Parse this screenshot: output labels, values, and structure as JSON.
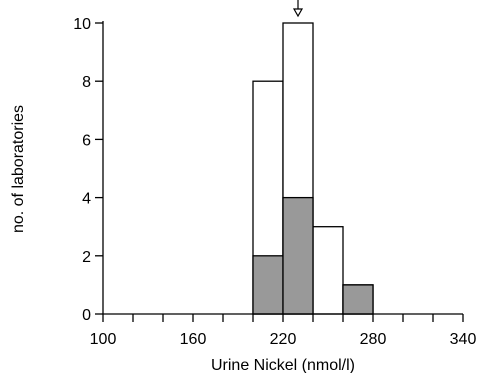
{
  "chart_data": {
    "type": "bar",
    "title": "",
    "xlabel": "Urine Nickel (nmol/l)",
    "ylabel": "no. of laboratories",
    "xlim": [
      100,
      340
    ],
    "ylim": [
      0,
      10
    ],
    "x_ticks": [
      100,
      160,
      220,
      280,
      340
    ],
    "x_minor_step": 20,
    "y_ticks": [
      0,
      2,
      4,
      6,
      8,
      10
    ],
    "bin_width": 20,
    "grid": false,
    "legend": "none",
    "marker": {
      "type": "arrow",
      "x": 230
    },
    "series": [
      {
        "color": "#ffffff",
        "bins": [
          {
            "start": 200,
            "end": 220,
            "value": 8
          },
          {
            "start": 220,
            "end": 240,
            "value": 10
          },
          {
            "start": 240,
            "end": 260,
            "value": 3
          },
          {
            "start": 260,
            "end": 280,
            "value": 1
          }
        ]
      },
      {
        "color": "#999999",
        "bins": [
          {
            "start": 200,
            "end": 220,
            "value": 2
          },
          {
            "start": 220,
            "end": 240,
            "value": 4
          },
          {
            "start": 240,
            "end": 260,
            "value": 0
          },
          {
            "start": 260,
            "end": 280,
            "value": 1
          }
        ]
      }
    ]
  }
}
